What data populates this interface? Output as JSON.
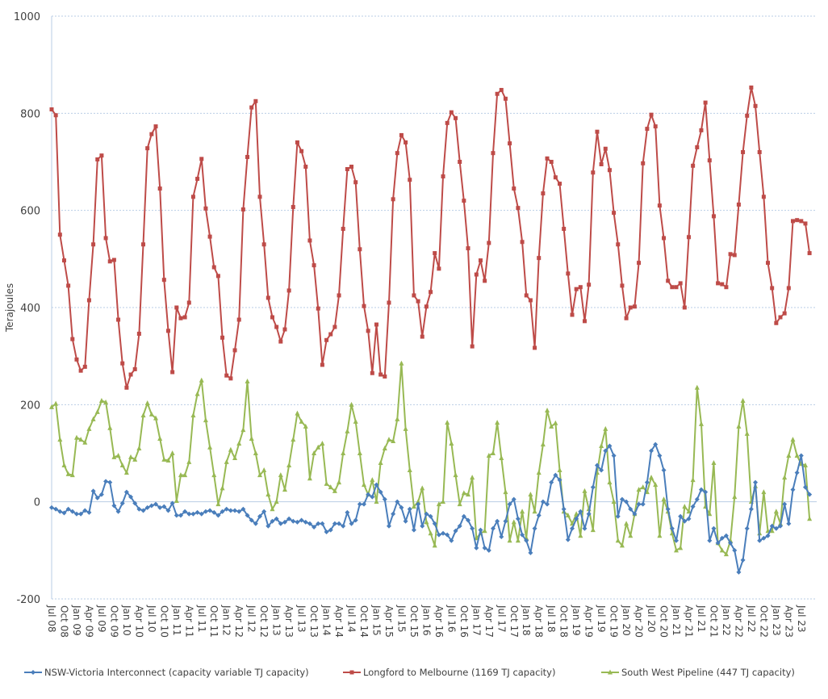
{
  "chart_data": {
    "type": "line",
    "title": "",
    "xlabel": "",
    "ylabel": "Terajoules",
    "ylim": [
      -200,
      1000
    ],
    "yticks": [
      -200,
      0,
      200,
      400,
      600,
      800,
      1000
    ],
    "grid": true,
    "legend_position": "bottom",
    "start_month": "Jul 2008",
    "end_month": "Sep 2023",
    "x_tick_labels": [
      "Jul 08",
      "Oct 08",
      "Jan 09",
      "Apr 09",
      "Jul 09",
      "Oct 09",
      "Jan 10",
      "Apr 10",
      "Jul 10",
      "Oct 10",
      "Jan 11",
      "Apr 11",
      "Jul 11",
      "Oct 11",
      "Jan 12",
      "Apr 12",
      "Jul 12",
      "Oct 12",
      "Jan 13",
      "Apr 13",
      "Jul 13",
      "Oct 13",
      "Jan 14",
      "Apr 14",
      "Jul 14",
      "Oct 14",
      "Jan 15",
      "Apr 15",
      "Jul 15",
      "Oct 15",
      "Jan 16",
      "Apr 16",
      "Jul 16",
      "Oct 16",
      "Jan 17",
      "Apr 17",
      "Jul 17",
      "Oct 17",
      "Jan 18",
      "Apr 18",
      "Jul 18",
      "Oct 18",
      "Jan 19",
      "Apr 19",
      "Jul 19",
      "Oct 19",
      "Jan 20",
      "Apr 20",
      "Jul 20",
      "Oct 20",
      "Jan 21",
      "Apr 21",
      "Jul 21",
      "Oct 21",
      "Jan 22",
      "Apr 22",
      "Jul 22",
      "Oct 22",
      "Jan 23",
      "Apr 23",
      "Jul 23"
    ],
    "series": [
      {
        "name": "NSW-Victoria Interconnect (capacity variable TJ capacity)",
        "color": "#4a7ebb",
        "marker": "diamond",
        "values": [
          -12,
          -15,
          -20,
          -23,
          -15,
          -20,
          -25,
          -25,
          -18,
          -22,
          22,
          8,
          15,
          42,
          40,
          -8,
          -20,
          -3,
          20,
          10,
          -3,
          -15,
          -18,
          -12,
          -8,
          -5,
          -12,
          -10,
          -18,
          -3,
          -28,
          -28,
          -20,
          -25,
          -25,
          -22,
          -25,
          -20,
          -18,
          -22,
          -28,
          -20,
          -15,
          -18,
          -18,
          -20,
          -15,
          -28,
          -38,
          -45,
          -30,
          -20,
          -50,
          -40,
          -35,
          -45,
          -42,
          -35,
          -40,
          -42,
          -38,
          -42,
          -45,
          -52,
          -45,
          -45,
          -62,
          -58,
          -45,
          -45,
          -50,
          -22,
          -45,
          -38,
          -5,
          -5,
          15,
          10,
          35,
          20,
          5,
          -50,
          -25,
          0,
          -12,
          -40,
          -15,
          -58,
          -5,
          -50,
          -25,
          -30,
          -45,
          -68,
          -65,
          -68,
          -80,
          -60,
          -50,
          -30,
          -38,
          -55,
          -95,
          -58,
          -95,
          -100,
          -55,
          -40,
          -72,
          -40,
          -5,
          5,
          -35,
          -68,
          -80,
          -105,
          -55,
          -28,
          0,
          -5,
          40,
          55,
          45,
          -15,
          -78,
          -55,
          -35,
          -20,
          -55,
          -25,
          30,
          75,
          65,
          105,
          115,
          95,
          -30,
          5,
          0,
          -15,
          -25,
          -5,
          -5,
          40,
          105,
          118,
          95,
          65,
          -15,
          -55,
          -80,
          -30,
          -40,
          -35,
          -10,
          5,
          25,
          20,
          -80,
          -55,
          -85,
          -75,
          -70,
          -85,
          -100,
          -145,
          -120,
          -55,
          -15,
          40,
          -80,
          -75,
          -70,
          -50,
          -55,
          -50,
          -5,
          -45,
          25,
          60,
          95,
          30,
          15
        ]
      },
      {
        "name": "Longford to Melbourne (1169 TJ capacity)",
        "color": "#be4b48",
        "marker": "square",
        "values": [
          808,
          796,
          550,
          497,
          445,
          335,
          293,
          270,
          278,
          415,
          530,
          705,
          713,
          543,
          495,
          498,
          375,
          285,
          235,
          262,
          273,
          346,
          530,
          728,
          757,
          773,
          645,
          457,
          352,
          267,
          400,
          378,
          380,
          410,
          628,
          665,
          706,
          604,
          546,
          483,
          465,
          338,
          260,
          254,
          312,
          375,
          602,
          710,
          812,
          825,
          628,
          530,
          420,
          380,
          360,
          330,
          355,
          435,
          607,
          740,
          722,
          690,
          538,
          487,
          398,
          282,
          333,
          345,
          360,
          425,
          562,
          685,
          690,
          658,
          520,
          403,
          352,
          265,
          365,
          262,
          258,
          410,
          623,
          718,
          755,
          740,
          663,
          425,
          413,
          340,
          402,
          432,
          512,
          480,
          670,
          780,
          802,
          790,
          700,
          620,
          522,
          320,
          468,
          497,
          455,
          533,
          718,
          840,
          848,
          830,
          738,
          645,
          605,
          535,
          425,
          415,
          317,
          502,
          635,
          707,
          700,
          668,
          655,
          562,
          470,
          385,
          438,
          442,
          372,
          447,
          678,
          762,
          695,
          727,
          683,
          595,
          530,
          445,
          378,
          400,
          402,
          492,
          697,
          768,
          797,
          773,
          610,
          543,
          455,
          442,
          442,
          450,
          400,
          545,
          692,
          730,
          765,
          822,
          703,
          588,
          450,
          448,
          442,
          510,
          508,
          612,
          720,
          795,
          853,
          815,
          720,
          628,
          492,
          440,
          368,
          380,
          388,
          440,
          578,
          580,
          578,
          573,
          512
        ]
      },
      {
        "name": "South West Pipeline (447 TJ capacity)",
        "color": "#98b954",
        "marker": "triangle",
        "values": [
          195,
          202,
          128,
          75,
          57,
          55,
          132,
          128,
          122,
          150,
          170,
          185,
          208,
          205,
          152,
          92,
          95,
          75,
          60,
          92,
          87,
          110,
          178,
          203,
          180,
          172,
          130,
          87,
          85,
          100,
          2,
          55,
          55,
          82,
          178,
          222,
          250,
          168,
          112,
          55,
          -5,
          28,
          82,
          107,
          90,
          120,
          148,
          248,
          130,
          100,
          55,
          65,
          15,
          -15,
          0,
          55,
          25,
          75,
          128,
          182,
          165,
          155,
          48,
          100,
          112,
          120,
          37,
          30,
          22,
          40,
          100,
          145,
          200,
          165,
          100,
          35,
          15,
          45,
          0,
          80,
          110,
          128,
          125,
          170,
          285,
          150,
          65,
          -10,
          0,
          28,
          -42,
          -65,
          -90,
          -5,
          0,
          163,
          120,
          55,
          -5,
          18,
          15,
          50,
          -75,
          -65,
          -60,
          95,
          100,
          163,
          90,
          20,
          -80,
          -42,
          -80,
          -20,
          -75,
          15,
          -20,
          60,
          118,
          188,
          155,
          162,
          65,
          -20,
          -28,
          -45,
          -25,
          -70,
          22,
          -15,
          -58,
          60,
          115,
          150,
          40,
          0,
          -80,
          -90,
          -45,
          -70,
          -25,
          25,
          30,
          20,
          50,
          35,
          -70,
          5,
          -20,
          -65,
          -100,
          -95,
          -10,
          -20,
          45,
          235,
          160,
          -10,
          -25,
          80,
          -85,
          -100,
          -108,
          -80,
          10,
          155,
          208,
          140,
          0,
          32,
          -65,
          20,
          -60,
          -60,
          -20,
          -45,
          50,
          95,
          128,
          95,
          78,
          75,
          -35
        ]
      }
    ]
  }
}
